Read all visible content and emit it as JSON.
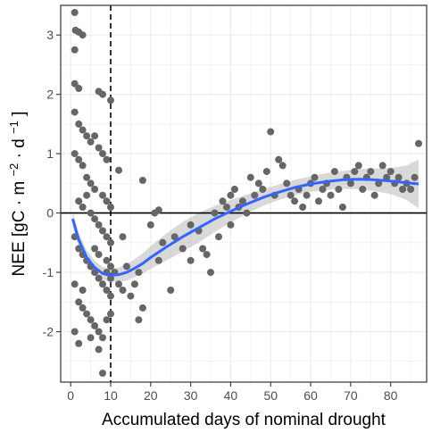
{
  "chart_data": {
    "type": "scatter",
    "xlabel": "Accumulated days of nominal drought",
    "ylabel": {
      "base": "NEE [gC",
      "dot1": "·",
      "m": " m",
      "sup1": "−2",
      "dot2": " ·",
      "d": " d",
      "sup2": "−1",
      "close": "]"
    },
    "xlim": [
      -2.5,
      89
    ],
    "ylim": [
      -2.85,
      3.5
    ],
    "x_ticks": [
      0,
      10,
      20,
      30,
      40,
      50,
      60,
      70,
      80
    ],
    "y_ticks": [
      -2,
      -1,
      0,
      1,
      2,
      3
    ],
    "grid": true,
    "vline_x": 10,
    "hline_y": 0,
    "colors": {
      "points": "#666666",
      "smooth": "#3366ff",
      "ribbon": "#bfbfbf",
      "panel_border": "#333333",
      "grid": "#ebebeb"
    },
    "points": [
      [
        1,
        3.38
      ],
      [
        1.2,
        3.08
      ],
      [
        2,
        3.05
      ],
      [
        3,
        3.0
      ],
      [
        1,
        2.75
      ],
      [
        1,
        2.18
      ],
      [
        2,
        2.1
      ],
      [
        7,
        2.05
      ],
      [
        8,
        2.0
      ],
      [
        10,
        1.9
      ],
      [
        1,
        1.7
      ],
      [
        2,
        1.5
      ],
      [
        3,
        1.4
      ],
      [
        4,
        1.3
      ],
      [
        5,
        1.2
      ],
      [
        6,
        1.3
      ],
      [
        7,
        1.1
      ],
      [
        8,
        1.0
      ],
      [
        9,
        0.9
      ],
      [
        3,
        0.8
      ],
      [
        4,
        0.6
      ],
      [
        5,
        0.5
      ],
      [
        6,
        0.4
      ],
      [
        2,
        0.9
      ],
      [
        1,
        1.0
      ],
      [
        8,
        0.3
      ],
      [
        9,
        0.2
      ],
      [
        10,
        0.1
      ],
      [
        2,
        0.2
      ],
      [
        3,
        0.1
      ],
      [
        4,
        0.3
      ],
      [
        5,
        0.0
      ],
      [
        6,
        -0.1
      ],
      [
        7,
        -0.2
      ],
      [
        8,
        -0.3
      ],
      [
        9,
        -0.4
      ],
      [
        10,
        -0.5
      ],
      [
        1,
        -0.4
      ],
      [
        2,
        -0.6
      ],
      [
        3,
        -0.7
      ],
      [
        4,
        -0.8
      ],
      [
        5,
        -0.9
      ],
      [
        6,
        -1.0
      ],
      [
        7,
        -1.1
      ],
      [
        8,
        -1.2
      ],
      [
        9,
        -1.3
      ],
      [
        10,
        -1.4
      ],
      [
        1,
        -1.2
      ],
      [
        2,
        -1.5
      ],
      [
        3,
        -1.6
      ],
      [
        4,
        -1.7
      ],
      [
        5,
        -1.8
      ],
      [
        6,
        -1.9
      ],
      [
        7,
        -2.0
      ],
      [
        8,
        -2.1
      ],
      [
        9,
        -1.8
      ],
      [
        10,
        -1.7
      ],
      [
        1,
        -2.0
      ],
      [
        2,
        -2.2
      ],
      [
        3,
        -1.3
      ],
      [
        5,
        -2.1
      ],
      [
        7,
        -2.3
      ],
      [
        8,
        -2.7
      ],
      [
        9,
        -1.0
      ],
      [
        10,
        -0.9
      ],
      [
        6,
        -0.6
      ],
      [
        7,
        -0.7
      ],
      [
        9,
        -0.8
      ],
      [
        10,
        -1.1
      ],
      [
        11,
        -1.0
      ],
      [
        12,
        -1.2
      ],
      [
        13,
        -1.3
      ],
      [
        12,
        0.72
      ],
      [
        13,
        -0.4
      ],
      [
        14,
        -0.9
      ],
      [
        15,
        -1.4
      ],
      [
        16,
        -1.2
      ],
      [
        17,
        -1.0
      ],
      [
        18,
        -1.6
      ],
      [
        17,
        -1.8
      ],
      [
        18,
        0.55
      ],
      [
        20,
        -0.2
      ],
      [
        21,
        0.0
      ],
      [
        22,
        0.05
      ],
      [
        23,
        -0.5
      ],
      [
        22,
        -0.8
      ],
      [
        25,
        -1.3
      ],
      [
        26,
        -0.4
      ],
      [
        28,
        -0.6
      ],
      [
        30,
        -0.2
      ],
      [
        30,
        -0.8
      ],
      [
        32,
        -0.3
      ],
      [
        33,
        -0.6
      ],
      [
        34,
        -0.7
      ],
      [
        35,
        -1.0
      ],
      [
        36,
        0.0
      ],
      [
        37,
        -0.4
      ],
      [
        38,
        0.2
      ],
      [
        39,
        0.1
      ],
      [
        40,
        -0.2
      ],
      [
        40,
        0.3
      ],
      [
        41,
        0.4
      ],
      [
        42,
        0.1
      ],
      [
        43,
        0.2
      ],
      [
        44,
        0.0
      ],
      [
        45,
        0.6
      ],
      [
        46,
        0.3
      ],
      [
        47,
        0.5
      ],
      [
        48,
        0.4
      ],
      [
        49,
        0.7
      ],
      [
        50,
        1.37
      ],
      [
        51,
        0.3
      ],
      [
        52,
        0.9
      ],
      [
        53,
        0.8
      ],
      [
        54,
        0.5
      ],
      [
        55,
        0.3
      ],
      [
        56,
        0.2
      ],
      [
        57,
        0.4
      ],
      [
        58,
        0.1
      ],
      [
        59,
        0.3
      ],
      [
        60,
        0.5
      ],
      [
        61,
        0.6
      ],
      [
        62,
        0.2
      ],
      [
        63,
        0.4
      ],
      [
        64,
        0.5
      ],
      [
        65,
        0.3
      ],
      [
        66,
        0.7
      ],
      [
        67,
        0.4
      ],
      [
        68,
        0.1
      ],
      [
        69,
        0.6
      ],
      [
        70,
        0.5
      ],
      [
        71,
        0.7
      ],
      [
        72,
        0.8
      ],
      [
        73,
        0.4
      ],
      [
        74,
        0.6
      ],
      [
        75,
        0.7
      ],
      [
        76,
        0.3
      ],
      [
        77,
        0.5
      ],
      [
        78,
        0.8
      ],
      [
        79,
        0.6
      ],
      [
        80,
        0.7
      ],
      [
        81,
        0.5
      ],
      [
        82,
        0.6
      ],
      [
        83,
        0.4
      ],
      [
        84,
        0.5
      ],
      [
        85,
        0.4
      ],
      [
        86,
        0.6
      ],
      [
        87,
        1.17
      ]
    ],
    "smooth": [
      [
        0.5,
        -0.1
      ],
      [
        2,
        -0.45
      ],
      [
        4,
        -0.75
      ],
      [
        6,
        -0.92
      ],
      [
        8,
        -1.02
      ],
      [
        10,
        -1.05
      ],
      [
        12,
        -1.04
      ],
      [
        14,
        -1.0
      ],
      [
        16,
        -0.93
      ],
      [
        18,
        -0.85
      ],
      [
        20,
        -0.75
      ],
      [
        24,
        -0.57
      ],
      [
        28,
        -0.4
      ],
      [
        32,
        -0.25
      ],
      [
        36,
        -0.1
      ],
      [
        40,
        0.03
      ],
      [
        44,
        0.15
      ],
      [
        48,
        0.26
      ],
      [
        52,
        0.35
      ],
      [
        56,
        0.43
      ],
      [
        60,
        0.49
      ],
      [
        64,
        0.53
      ],
      [
        68,
        0.56
      ],
      [
        72,
        0.57
      ],
      [
        76,
        0.56
      ],
      [
        80,
        0.54
      ],
      [
        84,
        0.51
      ],
      [
        87,
        0.49
      ]
    ],
    "band_upper": [
      [
        0.5,
        0.03
      ],
      [
        2,
        -0.33
      ],
      [
        4,
        -0.63
      ],
      [
        6,
        -0.8
      ],
      [
        8,
        -0.91
      ],
      [
        10,
        -0.94
      ],
      [
        12,
        -0.92
      ],
      [
        14,
        -0.86
      ],
      [
        16,
        -0.78
      ],
      [
        18,
        -0.68
      ],
      [
        20,
        -0.56
      ],
      [
        24,
        -0.34
      ],
      [
        28,
        -0.15
      ],
      [
        32,
        0.0
      ],
      [
        36,
        0.12
      ],
      [
        40,
        0.22
      ],
      [
        44,
        0.31
      ],
      [
        48,
        0.4
      ],
      [
        52,
        0.48
      ],
      [
        56,
        0.56
      ],
      [
        60,
        0.62
      ],
      [
        64,
        0.67
      ],
      [
        68,
        0.71
      ],
      [
        72,
        0.74
      ],
      [
        76,
        0.75
      ],
      [
        80,
        0.76
      ],
      [
        84,
        0.8
      ],
      [
        87,
        0.9
      ]
    ],
    "band_lower": [
      [
        0.5,
        -0.23
      ],
      [
        2,
        -0.57
      ],
      [
        4,
        -0.87
      ],
      [
        6,
        -1.04
      ],
      [
        8,
        -1.13
      ],
      [
        10,
        -1.16
      ],
      [
        12,
        -1.16
      ],
      [
        14,
        -1.14
      ],
      [
        16,
        -1.08
      ],
      [
        18,
        -1.02
      ],
      [
        20,
        -0.94
      ],
      [
        24,
        -0.8
      ],
      [
        28,
        -0.65
      ],
      [
        32,
        -0.5
      ],
      [
        36,
        -0.32
      ],
      [
        40,
        -0.16
      ],
      [
        44,
        -0.01
      ],
      [
        48,
        0.12
      ],
      [
        52,
        0.22
      ],
      [
        56,
        0.3
      ],
      [
        60,
        0.36
      ],
      [
        64,
        0.39
      ],
      [
        68,
        0.41
      ],
      [
        72,
        0.4
      ],
      [
        76,
        0.37
      ],
      [
        80,
        0.32
      ],
      [
        84,
        0.22
      ],
      [
        87,
        0.08
      ]
    ]
  }
}
